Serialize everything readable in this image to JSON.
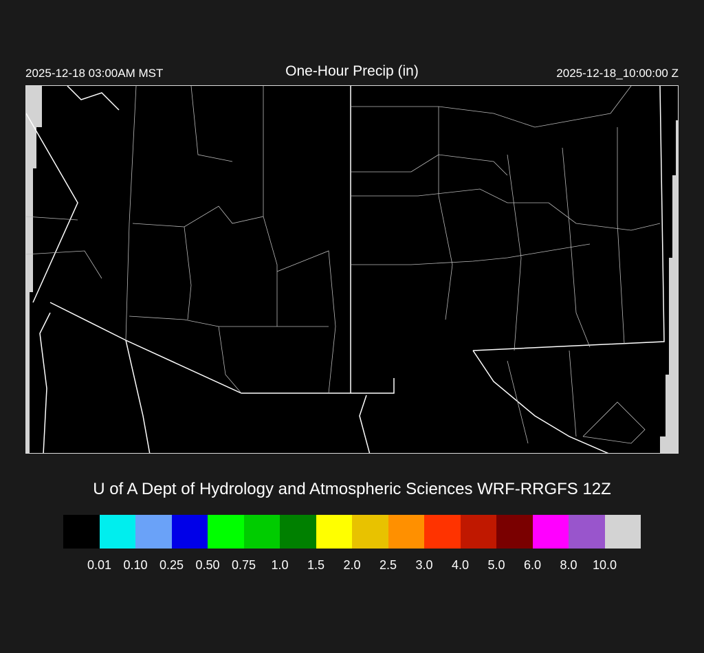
{
  "header": {
    "local_time": "2025-12-18 03:00AM MST",
    "title": "One-Hour Precip (in)",
    "utc_time": "2025-12-18_10:00:00 Z"
  },
  "credit": "U of A Dept of Hydrology and Atmospheric Sciences WRF-RRGFS 12Z",
  "map": {
    "region": "Southwest United States",
    "background": "#000000",
    "boundary_color": "#ffffff",
    "no_data_color": "#d3d3d3",
    "precip_present": false
  },
  "colorbar": {
    "colors": [
      "#000000",
      "#00eeee",
      "#6aa2f8",
      "#0000e8",
      "#00ff00",
      "#00cc00",
      "#008000",
      "#ffff00",
      "#e8c200",
      "#ff9000",
      "#ff3300",
      "#c01800",
      "#7a0000",
      "#ff00ff",
      "#9955cc",
      "#d3d3d3"
    ],
    "labels": [
      "0.01",
      "0.10",
      "0.25",
      "0.50",
      "0.75",
      "1.0",
      "1.5",
      "2.0",
      "2.5",
      "3.0",
      "4.0",
      "5.0",
      "6.0",
      "8.0",
      "10.0"
    ]
  }
}
